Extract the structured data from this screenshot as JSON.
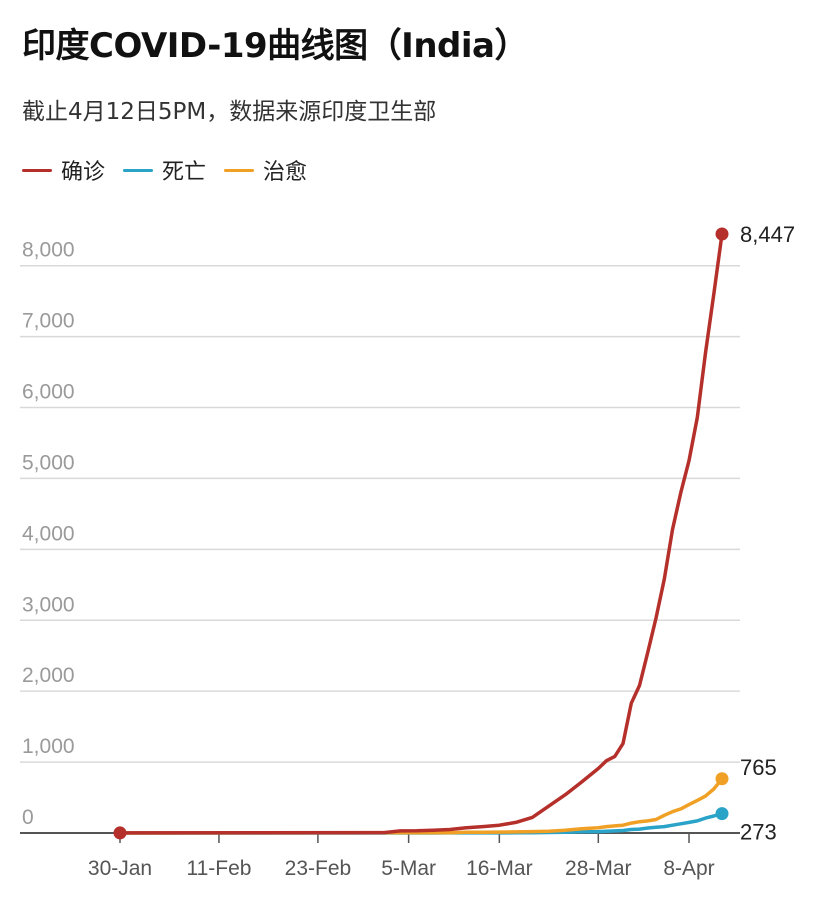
{
  "header": {
    "title": "印度COVID-19曲线图（India）",
    "subtitle": "截止4月12日5PM，数据来源印度卫生部"
  },
  "colors": {
    "confirmed": "#b5302b",
    "deaths": "#2aa3c9",
    "recovered": "#f0a024",
    "grid": "#d9d9d9",
    "axis": "#555555"
  },
  "chart_data": {
    "type": "line",
    "title": "印度COVID-19曲线图（India）",
    "subtitle": "截止4月12日5PM，数据来源印度卫生部",
    "xlabel": "",
    "ylabel": "",
    "ylim": [
      0,
      8447
    ],
    "grid": true,
    "legend_position": "top-left",
    "y_ticks": [
      0,
      1000,
      2000,
      3000,
      4000,
      5000,
      6000,
      7000,
      8000
    ],
    "y_tick_labels": [
      "0",
      "1,000",
      "2,000",
      "3,000",
      "4,000",
      "5,000",
      "6,000",
      "7,000",
      "8,000"
    ],
    "x_ticks": [
      "30-Jan",
      "11-Feb",
      "23-Feb",
      "5-Mar",
      "16-Mar",
      "28-Mar",
      "8-Apr"
    ],
    "x": [
      "30-Jan",
      "2-Mar",
      "4-Mar",
      "6-Mar",
      "8-Mar",
      "10-Mar",
      "12-Mar",
      "14-Mar",
      "16-Mar",
      "18-Mar",
      "20-Mar",
      "22-Mar",
      "24-Mar",
      "26-Mar",
      "28-Mar",
      "29-Mar",
      "30-Mar",
      "31-Mar",
      "1-Apr",
      "2-Apr",
      "3-Apr",
      "4-Apr",
      "5-Apr",
      "6-Apr",
      "7-Apr",
      "8-Apr",
      "9-Apr",
      "10-Apr",
      "11-Apr",
      "12-Apr"
    ],
    "series": [
      {
        "name": "确诊",
        "key": "confirmed",
        "values": [
          1,
          5,
          29,
          31,
          40,
          50,
          75,
          90,
          110,
          150,
          220,
          380,
          540,
          720,
          910,
          1020,
          1080,
          1260,
          1830,
          2080,
          2550,
          3030,
          3580,
          4280,
          4800,
          5250,
          5860,
          6770,
          7600,
          8447
        ]
      },
      {
        "name": "死亡",
        "key": "deaths",
        "values": [
          0,
          0,
          0,
          0,
          0,
          1,
          1,
          2,
          2,
          3,
          4,
          7,
          10,
          17,
          20,
          25,
          30,
          35,
          50,
          55,
          70,
          80,
          90,
          110,
          130,
          150,
          170,
          210,
          240,
          273
        ]
      },
      {
        "name": "治愈",
        "key": "recovered",
        "values": [
          0,
          3,
          3,
          3,
          3,
          4,
          10,
          10,
          13,
          15,
          20,
          25,
          40,
          60,
          75,
          90,
          100,
          110,
          140,
          160,
          170,
          190,
          250,
          300,
          340,
          400,
          460,
          520,
          620,
          765
        ]
      }
    ],
    "end_labels": [
      "8,447",
      "765",
      "273"
    ]
  }
}
